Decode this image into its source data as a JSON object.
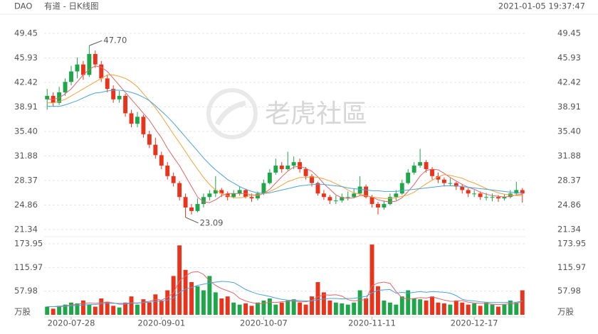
{
  "header": {
    "symbol": "DAO",
    "title": "有道 - 日K线图",
    "timestamp": "2021-01-05 19:37:47"
  },
  "watermark": "老虎社區",
  "chart_data": {
    "type": "candlestick",
    "up_color": "#1fa64a",
    "down_color": "#e8341c",
    "candles": [
      [
        40,
        41.5,
        38.5,
        40.5
      ],
      [
        40.5,
        41,
        39,
        39.5
      ],
      [
        39.5,
        41.8,
        39.2,
        41
      ],
      [
        41,
        43,
        40.5,
        42.5
      ],
      [
        42.5,
        44.8,
        42,
        44
      ],
      [
        44,
        46,
        43,
        45
      ],
      [
        45,
        45.5,
        42.8,
        43.5
      ],
      [
        43.5,
        47.7,
        43.2,
        46.5
      ],
      [
        46.5,
        47,
        44.5,
        45
      ],
      [
        45,
        45.5,
        42.5,
        43
      ],
      [
        43,
        43.5,
        41,
        41.5
      ],
      [
        41.5,
        42,
        39.5,
        40
      ],
      [
        40,
        41.2,
        39.5,
        40.5
      ],
      [
        40.5,
        40.8,
        37.5,
        38
      ],
      [
        38,
        38.5,
        36,
        36.5
      ],
      [
        36.5,
        38.2,
        36,
        37.5
      ],
      [
        37.5,
        37.8,
        34.5,
        35
      ],
      [
        35,
        35.5,
        33,
        33.5
      ],
      [
        33.5,
        34.5,
        31.5,
        32
      ],
      [
        32,
        32.5,
        30,
        30.5
      ],
      [
        30.5,
        31,
        28.5,
        29
      ],
      [
        29,
        29.5,
        27.5,
        28
      ],
      [
        28,
        28.3,
        25.5,
        26
      ],
      [
        26,
        26.5,
        23.09,
        24.5
      ],
      [
        24.5,
        25,
        23.5,
        24
      ],
      [
        24,
        25.8,
        23.8,
        25
      ],
      [
        25,
        26.5,
        24.5,
        26
      ],
      [
        26,
        27,
        25.5,
        26.5
      ],
      [
        26.5,
        29,
        26,
        27
      ],
      [
        27,
        27.3,
        26,
        26.5
      ],
      [
        26.5,
        26.8,
        25.5,
        26
      ],
      [
        26,
        27,
        25.8,
        26.5
      ],
      [
        26.5,
        27.5,
        26.2,
        27
      ],
      [
        27,
        27.2,
        25.8,
        26
      ],
      [
        26,
        26.5,
        25.3,
        25.8
      ],
      [
        25.8,
        26.8,
        25.5,
        26.5
      ],
      [
        26.5,
        28.5,
        26.3,
        28
      ],
      [
        28,
        30,
        27.8,
        29.5
      ],
      [
        29.5,
        31.5,
        29.2,
        30.5
      ],
      [
        30.5,
        31,
        29.5,
        30
      ],
      [
        30,
        32.5,
        29.8,
        30.5
      ],
      [
        30.5,
        31.8,
        30,
        31
      ],
      [
        31,
        31.5,
        29.5,
        30
      ],
      [
        30,
        30.3,
        28.5,
        29
      ],
      [
        29,
        29.3,
        27.5,
        28
      ],
      [
        28,
        28.2,
        26.2,
        26.5
      ],
      [
        26.5,
        27,
        25.6,
        26
      ],
      [
        26,
        26.3,
        25,
        25.5
      ],
      [
        25.5,
        26.2,
        25,
        25.5
      ],
      [
        25.5,
        26.5,
        25.2,
        26
      ],
      [
        26,
        26.8,
        25.5,
        26
      ],
      [
        26,
        27.2,
        25.8,
        26.5
      ],
      [
        26.5,
        29,
        26.3,
        27.5
      ],
      [
        27.5,
        27.8,
        25.8,
        26
      ],
      [
        26,
        26.3,
        24.5,
        25
      ],
      [
        25,
        25.3,
        23.5,
        24.5
      ],
      [
        24.5,
        25.5,
        24.2,
        25
      ],
      [
        25,
        26.5,
        24.8,
        26
      ],
      [
        26,
        27,
        25.5,
        26.5
      ],
      [
        26.5,
        28.5,
        26.3,
        28
      ],
      [
        28,
        30,
        27.8,
        29.5
      ],
      [
        29.5,
        31,
        29.2,
        30.5
      ],
      [
        30.5,
        32.9,
        30.2,
        31
      ],
      [
        31,
        31.3,
        29.5,
        30
      ],
      [
        30,
        30.3,
        28.5,
        29
      ],
      [
        29,
        29.5,
        28,
        28.5
      ],
      [
        28.5,
        28.8,
        27.5,
        28
      ],
      [
        28,
        28.7,
        27.6,
        28
      ],
      [
        28,
        28.2,
        27,
        27.5
      ],
      [
        27.5,
        27.8,
        26.5,
        27
      ],
      [
        27,
        27.3,
        26,
        26.5
      ],
      [
        26.5,
        27,
        26,
        26.5
      ],
      [
        26.5,
        26.8,
        25.6,
        26
      ],
      [
        26,
        26.6,
        25.5,
        26
      ],
      [
        26,
        26.5,
        25.4,
        26
      ],
      [
        26,
        26.3,
        25.3,
        25.8
      ],
      [
        25.8,
        26.4,
        25.5,
        26
      ],
      [
        26,
        27,
        25.8,
        26.5
      ],
      [
        26.5,
        28.2,
        26.3,
        27
      ],
      [
        27,
        27.3,
        25.2,
        26.5
      ]
    ],
    "ma_lines": [
      {
        "color": "#e06666",
        "values": [
          40,
          40,
          40.2,
          40.8,
          41.5,
          42.5,
          43.5,
          44.3,
          44.8,
          44.6,
          44,
          43,
          42,
          41,
          40,
          39,
          38,
          37,
          35.7,
          34.5,
          33,
          31.7,
          30.5,
          29,
          27.5,
          26,
          25.3,
          25.2,
          25.6,
          26.2,
          26.5,
          26.5,
          26.5,
          26.5,
          26.3,
          26.2,
          26.5,
          27.1,
          28,
          28.9,
          29.7,
          30.3,
          30.4,
          30.1,
          29.7,
          28.9,
          27.9,
          27.1,
          26.3,
          25.9,
          25.8,
          25.9,
          26.2,
          26.2,
          26,
          25.6,
          25.4,
          25.3,
          25.4,
          25.9,
          26.8,
          27.8,
          29,
          29.8,
          30,
          29.9,
          29.4,
          28.8,
          28.3,
          27.8,
          27.4,
          27.1,
          26.7,
          26.4,
          26.2,
          26.1,
          26,
          26.1,
          26.3,
          26.4
        ]
      },
      {
        "color": "#f2a33a",
        "values": [
          39.5,
          39.5,
          39.7,
          40,
          40.5,
          41,
          41.5,
          42,
          42.5,
          43,
          43.5,
          43.5,
          43.3,
          43,
          42.5,
          41.8,
          40.8,
          39.8,
          38.8,
          37.6,
          36.3,
          35,
          33.8,
          32.5,
          31.2,
          30,
          28.8,
          27.8,
          27,
          26.5,
          26.2,
          25.9,
          25.9,
          26,
          26.3,
          26.3,
          26.5,
          26.8,
          27.2,
          27.7,
          28.2,
          28.5,
          28.8,
          28.8,
          28.9,
          28.8,
          28.6,
          28.3,
          27.9,
          27.5,
          27,
          26.6,
          26.4,
          26.2,
          26,
          25.9,
          25.8,
          25.8,
          25.9,
          26.1,
          26.3,
          26.7,
          27.3,
          27.9,
          28.4,
          28.9,
          29.2,
          29.1,
          28.9,
          28.7,
          28.3,
          28,
          27.6,
          27.2,
          26.9,
          26.6,
          26.4,
          26.3,
          26.2,
          26.2
        ]
      },
      {
        "color": "#4ba3dd",
        "values": [
          39,
          39,
          39,
          39.2,
          39.5,
          39.8,
          40.2,
          40.6,
          40.9,
          41,
          41.2,
          41.3,
          41.3,
          41.2,
          41,
          40.7,
          40.3,
          39.8,
          39.1,
          38.3,
          37.5,
          36.6,
          35.6,
          34.6,
          33.6,
          32.6,
          31.6,
          30.7,
          29.9,
          29.2,
          28.5,
          28,
          27.5,
          27.1,
          26.8,
          26.6,
          26.5,
          26.6,
          26.8,
          27,
          27.2,
          27.4,
          27.6,
          27.7,
          27.8,
          27.8,
          27.8,
          27.7,
          27.6,
          27.5,
          27.3,
          27.2,
          27.1,
          27,
          26.9,
          26.9,
          26.8,
          26.8,
          26.8,
          26.9,
          27,
          27.1,
          27.2,
          27.3,
          27.4,
          27.5,
          27.6,
          27.6,
          27.6,
          27.5,
          27.4,
          27.3,
          27.2,
          27.1,
          27,
          26.9,
          26.8,
          26.7,
          26.6,
          26.6
        ]
      }
    ],
    "ylim": [
      21.34,
      49.45
    ],
    "yticks": [
      49.45,
      45.93,
      42.42,
      38.91,
      {
        "value": 35.4,
        "label": "35.40"
      },
      31.88,
      28.37,
      24.86,
      21.34
    ],
    "xticks": [
      {
        "value": 4,
        "label": "2020-07-28"
      },
      {
        "value": 19,
        "label": "2020-09-01"
      },
      {
        "value": 36,
        "label": "2020-10-07"
      },
      {
        "value": 54,
        "label": "2020-11-11"
      },
      {
        "value": 71,
        "label": "2020-12-17"
      }
    ],
    "annotations": [
      {
        "text": "47.70",
        "value": 47.7
      },
      {
        "text": "23.09",
        "value": 23.09
      }
    ],
    "volume": [
      20,
      15,
      22,
      25,
      30,
      28,
      35,
      25,
      20,
      40,
      32,
      22,
      18,
      30,
      45,
      25,
      38,
      30,
      50,
      35,
      60,
      95,
      170,
      110,
      80,
      70,
      60,
      95,
      55,
      40,
      45,
      30,
      25,
      28,
      22,
      30,
      35,
      40,
      25,
      30,
      35,
      38,
      30,
      25,
      45,
      80,
      55,
      35,
      30,
      28,
      25,
      30,
      60,
      40,
      172,
      70,
      35,
      30,
      25,
      45,
      60,
      40,
      38,
      35,
      45,
      30,
      28,
      25,
      35,
      30,
      25,
      28,
      22,
      30,
      25,
      20,
      25,
      35,
      30,
      60
    ],
    "volume_ma_lines": [
      {
        "color": "#e06666",
        "values": [
          20,
          20,
          21,
          22,
          24,
          26,
          28,
          29,
          28,
          30,
          31,
          29,
          26,
          26,
          29,
          28,
          31,
          33,
          38,
          36,
          43,
          54,
          83,
          95,
          104,
          106,
          99,
          83,
          72,
          64,
          59,
          53,
          40,
          34,
          30,
          27,
          28,
          31,
          30,
          32,
          33,
          34,
          32,
          32,
          35,
          44,
          49,
          48,
          49,
          46,
          37,
          34,
          36,
          37,
          71,
          78,
          80,
          77,
          57,
          41,
          39,
          40,
          42,
          41,
          44,
          40,
          36,
          33,
          33,
          35,
          31,
          29,
          28,
          28,
          26,
          25,
          26,
          27,
          27,
          34
        ]
      },
      {
        "color": "#4ba3dd",
        "values": [
          20,
          20,
          20,
          21,
          22,
          23,
          24,
          25,
          25,
          27,
          28,
          28,
          28,
          28,
          29,
          29,
          30,
          31,
          33,
          33,
          36,
          41,
          55,
          63,
          67,
          72,
          75,
          78,
          80,
          82,
          81,
          79,
          71,
          62,
          56,
          51,
          48,
          45,
          41,
          38,
          36,
          35,
          35,
          34,
          34,
          37,
          39,
          40,
          40,
          39,
          40,
          40,
          43,
          45,
          54,
          60,
          61,
          62,
          53,
          55,
          53,
          55,
          57,
          55,
          57,
          56,
          55,
          53,
          47,
          38,
          35,
          34,
          32,
          31,
          30,
          30,
          30,
          31,
          31,
          34
        ]
      }
    ],
    "volume_ylim": [
      0,
      173.95
    ],
    "volume_yticks": [
      173.95,
      115.97,
      57.98
    ],
    "volume_unit": "万股"
  }
}
